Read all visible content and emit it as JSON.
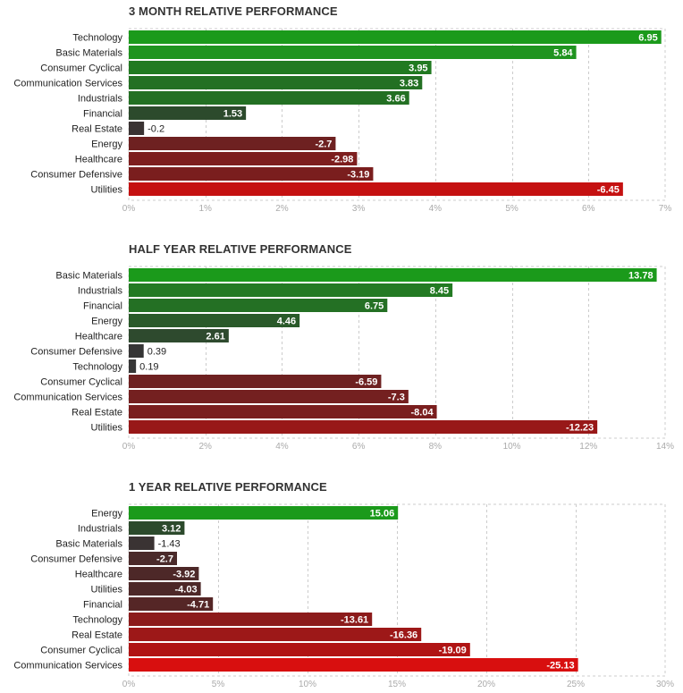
{
  "colors": {
    "grid": "#cccccc",
    "label": "#222222",
    "tick": "#aaaaaa"
  },
  "chart_data": [
    {
      "type": "bar",
      "orientation": "horizontal",
      "title": "3 MONTH RELATIVE PERFORMANCE",
      "categories": [
        "Technology",
        "Basic Materials",
        "Consumer Cyclical",
        "Communication Services",
        "Industrials",
        "Financial",
        "Real Estate",
        "Energy",
        "Healthcare",
        "Consumer Defensive",
        "Utilities"
      ],
      "values": [
        6.95,
        5.84,
        3.95,
        3.83,
        3.66,
        1.53,
        -0.2,
        -2.7,
        -2.98,
        -3.19,
        -6.45
      ],
      "value_labels": [
        "6.95",
        "5.84",
        "3.95",
        "3.83",
        "3.66",
        "1.53",
        "-0.2",
        "-2.7",
        "-2.98",
        "-3.19",
        "-6.45"
      ],
      "xlim": [
        0,
        7
      ],
      "ticks": [
        0,
        1,
        2,
        3,
        4,
        5,
        6,
        7
      ],
      "tick_labels": [
        "0%",
        "1%",
        "2%",
        "3%",
        "4%",
        "5%",
        "6%",
        "7%"
      ],
      "bar_length": "absolute value",
      "colors": [
        "#1b9a1b",
        "#1f941f",
        "#217a21",
        "#237023",
        "#237023",
        "#2c4a2c",
        "#3a3333",
        "#6e2121",
        "#7d1e1e",
        "#7a1e1e",
        "#c51111"
      ]
    },
    {
      "type": "bar",
      "orientation": "horizontal",
      "title": "HALF YEAR RELATIVE PERFORMANCE",
      "categories": [
        "Basic Materials",
        "Industrials",
        "Financial",
        "Energy",
        "Healthcare",
        "Consumer Defensive",
        "Technology",
        "Consumer Cyclical",
        "Communication Services",
        "Real Estate",
        "Utilities"
      ],
      "values": [
        13.78,
        8.45,
        6.75,
        4.46,
        2.61,
        0.39,
        0.19,
        -6.59,
        -7.3,
        -8.04,
        -12.23
      ],
      "value_labels": [
        "13.78",
        "8.45",
        "6.75",
        "4.46",
        "2.61",
        "0.39",
        "0.19",
        "-6.59",
        "-7.3",
        "-8.04",
        "-12.23"
      ],
      "xlim": [
        0,
        14
      ],
      "ticks": [
        0,
        2,
        4,
        6,
        8,
        10,
        12,
        14
      ],
      "tick_labels": [
        "0%",
        "2%",
        "4%",
        "6%",
        "8%",
        "10%",
        "12%",
        "14%"
      ],
      "bar_length": "absolute value",
      "colors": [
        "#1b9a1b",
        "#237a23",
        "#247024",
        "#2a5a2a",
        "#2e4a2e",
        "#353535",
        "#373737",
        "#6e2121",
        "#742020",
        "#7a1e1e",
        "#981818"
      ]
    },
    {
      "type": "bar",
      "orientation": "horizontal",
      "title": "1 YEAR RELATIVE PERFORMANCE",
      "categories": [
        "Energy",
        "Industrials",
        "Basic Materials",
        "Consumer Defensive",
        "Healthcare",
        "Utilities",
        "Financial",
        "Technology",
        "Real Estate",
        "Consumer Cyclical",
        "Communication Services"
      ],
      "values": [
        15.06,
        3.12,
        -1.43,
        -2.7,
        -3.92,
        -4.03,
        -4.71,
        -13.61,
        -16.36,
        -19.09,
        -25.13
      ],
      "value_labels": [
        "15.06",
        "3.12",
        "-1.43",
        "-2.7",
        "-3.92",
        "-4.03",
        "-4.71",
        "-13.61",
        "-16.36",
        "-19.09",
        "-25.13"
      ],
      "xlim": [
        0,
        30
      ],
      "ticks": [
        0,
        5,
        10,
        15,
        20,
        25,
        30
      ],
      "tick_labels": [
        "0%",
        "5%",
        "10%",
        "15%",
        "20%",
        "25%",
        "30%"
      ],
      "bar_length": "absolute value",
      "colors": [
        "#1b9a1b",
        "#2c4a2c",
        "#3a3333",
        "#4a2a2a",
        "#4d2828",
        "#4d2828",
        "#552626",
        "#8c1b1b",
        "#9d1818",
        "#b01414",
        "#d80f0f"
      ]
    }
  ]
}
